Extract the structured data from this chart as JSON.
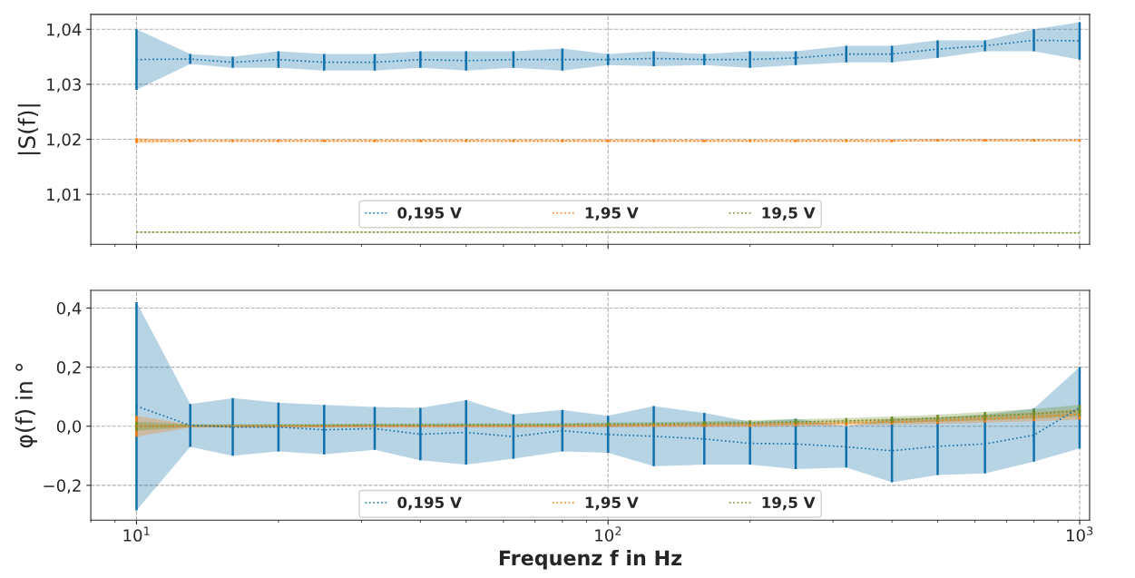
{
  "chart_data": [
    {
      "type": "line",
      "ylabel": "|S(f)|",
      "log": "x",
      "grid": true,
      "legend": "bottom",
      "marker": "none",
      "line_style": "dotted",
      "tick_labels": "y",
      "x": [
        10,
        13,
        16,
        20,
        25,
        32,
        40,
        50,
        63,
        80,
        100,
        125,
        160,
        200,
        250,
        320,
        400,
        500,
        630,
        800,
        1000
      ],
      "xlim": [
        8,
        1050
      ],
      "xticks": [
        {
          "value": 10,
          "label": null
        },
        {
          "value": 100,
          "label": null
        },
        {
          "value": 1000,
          "label": null
        }
      ],
      "ylim": [
        1.0009,
        1.0427
      ],
      "yticks": [
        {
          "value": 1.01,
          "label": "1,01"
        },
        {
          "value": 1.02,
          "label": "1,02"
        },
        {
          "value": 1.03,
          "label": "1,03"
        },
        {
          "value": 1.04,
          "label": "1,04"
        }
      ],
      "series": [
        {
          "name": "0,195 V",
          "color": "#1170aa",
          "values": [
            1.0345,
            1.0346,
            1.034,
            1.0345,
            1.034,
            1.034,
            1.0345,
            1.0343,
            1.0345,
            1.0345,
            1.0345,
            1.0347,
            1.0345,
            1.0345,
            1.0348,
            1.0355,
            1.0355,
            1.0364,
            1.037,
            1.038,
            1.0379
          ],
          "lower": [
            1.029,
            1.0337,
            1.033,
            1.033,
            1.0325,
            1.0325,
            1.033,
            1.0325,
            1.033,
            1.0325,
            1.0335,
            1.0333,
            1.0335,
            1.033,
            1.0335,
            1.034,
            1.034,
            1.0348,
            1.036,
            1.036,
            1.0345
          ],
          "upper": [
            1.04,
            1.0355,
            1.035,
            1.036,
            1.0355,
            1.0355,
            1.036,
            1.036,
            1.036,
            1.0365,
            1.0355,
            1.036,
            1.0355,
            1.036,
            1.036,
            1.037,
            1.037,
            1.038,
            1.038,
            1.04,
            1.0413
          ],
          "errors": [
            [
              1.029,
              1.04
            ],
            [
              1.0337,
              1.0355
            ],
            [
              1.033,
              1.035
            ],
            [
              1.033,
              1.036
            ],
            [
              1.0325,
              1.0355
            ],
            [
              1.0325,
              1.0355
            ],
            [
              1.033,
              1.036
            ],
            [
              1.0325,
              1.036
            ],
            [
              1.033,
              1.036
            ],
            [
              1.0325,
              1.0365
            ],
            [
              1.0335,
              1.0355
            ],
            [
              1.0333,
              1.036
            ],
            [
              1.0335,
              1.0355
            ],
            [
              1.033,
              1.036
            ],
            [
              1.0335,
              1.036
            ],
            [
              1.034,
              1.037
            ],
            [
              1.034,
              1.037
            ],
            [
              1.0348,
              1.038
            ],
            [
              1.036,
              1.038
            ],
            [
              1.036,
              1.04
            ],
            [
              1.0345,
              1.0413
            ]
          ]
        },
        {
          "name": "1,95 V",
          "color": "#fc7d0b",
          "values": [
            1.0197,
            1.0197,
            1.0197,
            1.0197,
            1.0197,
            1.0197,
            1.0197,
            1.0197,
            1.0197,
            1.0197,
            1.0197,
            1.0197,
            1.0197,
            1.0197,
            1.0197,
            1.0197,
            1.0197,
            1.0198,
            1.0198,
            1.0198,
            1.0198
          ],
          "lower": [
            1.0193,
            1.0195,
            1.0195,
            1.0195,
            1.0195,
            1.0195,
            1.0195,
            1.0195,
            1.0195,
            1.0195,
            1.0195,
            1.0195,
            1.0195,
            1.0195,
            1.0195,
            1.0195,
            1.0195,
            1.0196,
            1.0196,
            1.0196,
            1.0196
          ],
          "upper": [
            1.0202,
            1.0199,
            1.0199,
            1.0199,
            1.0199,
            1.0199,
            1.0199,
            1.0199,
            1.0199,
            1.0199,
            1.0199,
            1.0199,
            1.0199,
            1.0199,
            1.0199,
            1.0199,
            1.0199,
            1.02,
            1.02,
            1.02,
            1.02
          ],
          "errors": [
            [
              1.0193,
              1.0202
            ],
            [
              1.0195,
              1.0199
            ],
            [
              1.0195,
              1.0199
            ],
            [
              1.0195,
              1.0199
            ],
            [
              1.0195,
              1.0199
            ],
            [
              1.0195,
              1.0199
            ],
            [
              1.0195,
              1.0199
            ],
            [
              1.0195,
              1.0199
            ],
            [
              1.0195,
              1.0199
            ],
            [
              1.0195,
              1.0199
            ],
            [
              1.0195,
              1.0199
            ],
            [
              1.0195,
              1.0199
            ],
            [
              1.0195,
              1.0199
            ],
            [
              1.0195,
              1.0199
            ],
            [
              1.0195,
              1.0199
            ],
            [
              1.0195,
              1.0199
            ],
            [
              1.0195,
              1.0199
            ],
            [
              1.0196,
              1.02
            ],
            [
              1.0196,
              1.02
            ],
            [
              1.0196,
              1.02
            ],
            [
              1.0196,
              1.02
            ]
          ]
        },
        {
          "name": "19,5 V",
          "color": "#6b8e23",
          "values": [
            1.0031,
            1.0031,
            1.0031,
            1.0031,
            1.0031,
            1.0031,
            1.0031,
            1.0031,
            1.0031,
            1.0031,
            1.0031,
            1.0031,
            1.0031,
            1.0031,
            1.0031,
            1.0031,
            1.0031,
            1.003,
            1.003,
            1.003,
            1.003
          ],
          "lower": [
            1.003,
            1.003,
            1.003,
            1.003,
            1.003,
            1.003,
            1.003,
            1.003,
            1.003,
            1.003,
            1.003,
            1.003,
            1.003,
            1.003,
            1.003,
            1.003,
            1.003,
            1.0029,
            1.0029,
            1.0029,
            1.0029
          ],
          "upper": [
            1.0032,
            1.0032,
            1.0032,
            1.0032,
            1.0032,
            1.0032,
            1.0032,
            1.0032,
            1.0032,
            1.0032,
            1.0032,
            1.0032,
            1.0032,
            1.0032,
            1.0032,
            1.0032,
            1.0032,
            1.0031,
            1.0031,
            1.0031,
            1.0031
          ]
        }
      ]
    },
    {
      "type": "line",
      "ylabel": "φ(f) in °",
      "xlabel": "Frequenz f in Hz",
      "log": "x",
      "grid": true,
      "legend": "bottom",
      "marker": "none",
      "line_style": "dotted",
      "x": [
        10,
        13,
        16,
        20,
        25,
        32,
        40,
        50,
        63,
        80,
        100,
        125,
        160,
        200,
        250,
        320,
        400,
        500,
        630,
        800,
        1000
      ],
      "xlim": [
        8,
        1050
      ],
      "xticks": [
        {
          "value": 10,
          "label": "10$^{1}$"
        },
        {
          "value": 100,
          "label": "10$^{2}$"
        },
        {
          "value": 1000,
          "label": "10$^{3}$"
        }
      ],
      "ylim": [
        -0.318,
        0.46
      ],
      "yticks": [
        {
          "value": -0.2,
          "label": "−0,2"
        },
        {
          "value": 0.0,
          "label": "0,0"
        },
        {
          "value": 0.2,
          "label": "0,2"
        },
        {
          "value": 0.4,
          "label": "0,4"
        }
      ],
      "series": [
        {
          "name": "0,195 V",
          "color": "#1170aa",
          "values": [
            0.068,
            0.003,
            -0.003,
            -0.003,
            -0.012,
            -0.008,
            -0.027,
            -0.021,
            -0.035,
            -0.015,
            -0.028,
            -0.034,
            -0.043,
            -0.058,
            -0.06,
            -0.07,
            -0.083,
            -0.068,
            -0.06,
            -0.03,
            0.063
          ],
          "lower": [
            -0.285,
            -0.07,
            -0.1,
            -0.085,
            -0.095,
            -0.08,
            -0.115,
            -0.13,
            -0.11,
            -0.085,
            -0.09,
            -0.135,
            -0.13,
            -0.13,
            -0.145,
            -0.14,
            -0.19,
            -0.165,
            -0.16,
            -0.12,
            -0.075
          ],
          "upper": [
            0.42,
            0.075,
            0.095,
            0.08,
            0.072,
            0.065,
            0.062,
            0.088,
            0.04,
            0.055,
            0.035,
            0.068,
            0.045,
            0.015,
            0.025,
            0.0,
            0.025,
            0.03,
            0.04,
            0.06,
            0.2
          ],
          "errors": [
            [
              -0.285,
              0.42
            ],
            [
              -0.07,
              0.075
            ],
            [
              -0.1,
              0.095
            ],
            [
              -0.085,
              0.08
            ],
            [
              -0.095,
              0.072
            ],
            [
              -0.08,
              0.065
            ],
            [
              -0.115,
              0.062
            ],
            [
              -0.13,
              0.088
            ],
            [
              -0.11,
              0.04
            ],
            [
              -0.085,
              0.055
            ],
            [
              -0.09,
              0.035
            ],
            [
              -0.135,
              0.068
            ],
            [
              -0.13,
              0.045
            ],
            [
              -0.13,
              0.015
            ],
            [
              -0.145,
              0.025
            ],
            [
              -0.14,
              0.0
            ],
            [
              -0.19,
              0.025
            ],
            [
              -0.165,
              0.03
            ],
            [
              -0.16,
              0.04
            ],
            [
              -0.12,
              0.06
            ],
            [
              -0.075,
              0.2
            ]
          ]
        },
        {
          "name": "1,95 V",
          "color": "#fc7d0b",
          "values": [
            0.0,
            0.0,
            0.0,
            0.0,
            0.0,
            0.0,
            0.0,
            0.0,
            0.0,
            0.0,
            0.002,
            0.003,
            0.004,
            0.005,
            0.008,
            0.011,
            0.015,
            0.019,
            0.025,
            0.032,
            0.04
          ],
          "lower": [
            -0.035,
            -0.005,
            -0.005,
            -0.005,
            -0.005,
            -0.005,
            -0.005,
            -0.005,
            -0.005,
            -0.005,
            -0.003,
            -0.002,
            -0.002,
            -0.002,
            0.0,
            0.002,
            0.005,
            0.008,
            0.012,
            0.017,
            0.022
          ],
          "upper": [
            0.035,
            0.005,
            0.005,
            0.005,
            0.005,
            0.005,
            0.005,
            0.005,
            0.005,
            0.005,
            0.007,
            0.008,
            0.01,
            0.012,
            0.016,
            0.02,
            0.025,
            0.03,
            0.038,
            0.047,
            0.058
          ],
          "errors": [
            [
              -0.035,
              0.035
            ],
            null,
            null,
            null,
            null,
            null,
            null,
            null,
            null,
            null,
            null,
            [
              -0.002,
              0.008
            ],
            [
              -0.002,
              0.01
            ],
            [
              -0.002,
              0.012
            ],
            [
              0.0,
              0.016
            ],
            [
              0.002,
              0.02
            ],
            [
              0.005,
              0.025
            ],
            [
              0.008,
              0.03
            ],
            [
              0.012,
              0.038
            ],
            [
              0.017,
              0.047
            ],
            [
              0.022,
              0.058
            ]
          ]
        },
        {
          "name": "19,5 V",
          "color": "#6b8e23",
          "values": [
            0.0,
            0.002,
            0.002,
            0.003,
            0.003,
            0.004,
            0.004,
            0.005,
            0.005,
            0.006,
            0.007,
            0.008,
            0.01,
            0.012,
            0.015,
            0.018,
            0.022,
            0.027,
            0.034,
            0.042,
            0.052
          ],
          "lower": [
            -0.015,
            -0.003,
            -0.003,
            -0.002,
            -0.002,
            -0.001,
            -0.001,
            0.0,
            0.0,
            0.001,
            0.001,
            0.002,
            0.003,
            0.004,
            0.006,
            0.008,
            0.011,
            0.015,
            0.02,
            0.026,
            0.033
          ],
          "upper": [
            0.015,
            0.007,
            0.007,
            0.008,
            0.008,
            0.009,
            0.009,
            0.01,
            0.01,
            0.011,
            0.013,
            0.014,
            0.017,
            0.02,
            0.024,
            0.028,
            0.033,
            0.039,
            0.048,
            0.058,
            0.072
          ],
          "errors": [
            [
              -0.015,
              0.015
            ],
            null,
            null,
            null,
            null,
            null,
            null,
            null,
            null,
            null,
            [
              0.001,
              0.013
            ],
            [
              0.002,
              0.014
            ],
            [
              0.003,
              0.017
            ],
            [
              0.004,
              0.02
            ],
            [
              0.006,
              0.024
            ],
            [
              0.008,
              0.028
            ],
            [
              0.011,
              0.033
            ],
            [
              0.015,
              0.039
            ],
            [
              0.02,
              0.048
            ],
            [
              0.026,
              0.058
            ],
            [
              0.033,
              0.072
            ]
          ]
        }
      ]
    }
  ]
}
